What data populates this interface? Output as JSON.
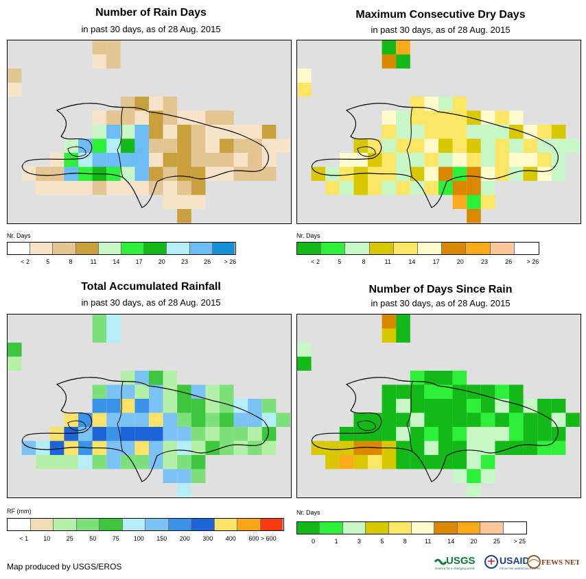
{
  "panels": [
    {
      "id": "rain-days",
      "title": "Number of Rain Days",
      "subtitle": "in past 30 days, as of 28 Aug. 2015",
      "legend_title": "Nr. Days",
      "legend_colors": [
        "#ffffff",
        "#f7e4c8",
        "#e2c590",
        "#c9a03e",
        "#c7f7c7",
        "#2ef03b",
        "#13b917",
        "#b5eef7",
        "#6cbdf5",
        "#1890d8"
      ],
      "legend_labels": [
        "< 2",
        "5",
        "8",
        "11",
        "14",
        "17",
        "20",
        "23",
        "26",
        "> 26"
      ]
    },
    {
      "id": "max-dry-days",
      "title": "Maximum Consecutive Dry Days",
      "subtitle": "in past 30 days, as of 28 Aug. 2015",
      "legend_title": "Nr. Days",
      "legend_colors": [
        "#13b917",
        "#2ef03b",
        "#c7f7c7",
        "#d9c800",
        "#fbe765",
        "#fffbcc",
        "#d98800",
        "#fbaa19",
        "#fbc79a",
        "#ffffff"
      ],
      "legend_labels": [
        "< 2",
        "5",
        "8",
        "11",
        "14",
        "17",
        "20",
        "23",
        "26",
        "> 26"
      ]
    },
    {
      "id": "total-rainfall",
      "title": "Total Accumulated Rainfall",
      "subtitle": "in past 30 days, as of 28 Aug. 2015",
      "legend_title": "RF (mm)",
      "legend_colors": [
        "#ffffff",
        "#f2dcb6",
        "#b5f0a8",
        "#7ee07a",
        "#3fc63f",
        "#b5eef7",
        "#7cc3f5",
        "#3a93e8",
        "#1d64d8",
        "#fbe36a",
        "#fba619",
        "#f73b0e"
      ],
      "legend_labels": [
        "< 1",
        "10",
        "25",
        "50",
        "75",
        "100",
        "150",
        "200",
        "300",
        "400",
        "600 > 600"
      ]
    },
    {
      "id": "days-since-rain",
      "title": "Number of Days Since Rain",
      "subtitle": "in past 30 days, as of 28 Aug. 2015",
      "legend_title": "Nr. Days",
      "legend_colors": [
        "#13b917",
        "#2ef03b",
        "#c7f7c7",
        "#d9c800",
        "#fbe765",
        "#fffbcc",
        "#d98800",
        "#fbaa19",
        "#fbc79a",
        "#ffffff"
      ],
      "legend_labels": [
        "0",
        "1",
        "3",
        "5",
        "8",
        "11",
        "14",
        "20",
        "25",
        "> 25"
      ]
    }
  ],
  "footer": {
    "credit": "Map produced by USGS/EROS"
  },
  "logos": {
    "usgs": "USGS",
    "usgs_tagline": "science for a changing world",
    "usaid": "USAID",
    "usaid_tagline": "FROM THE AMERICAN PEOPLE",
    "fews": "FEWS NET"
  }
}
